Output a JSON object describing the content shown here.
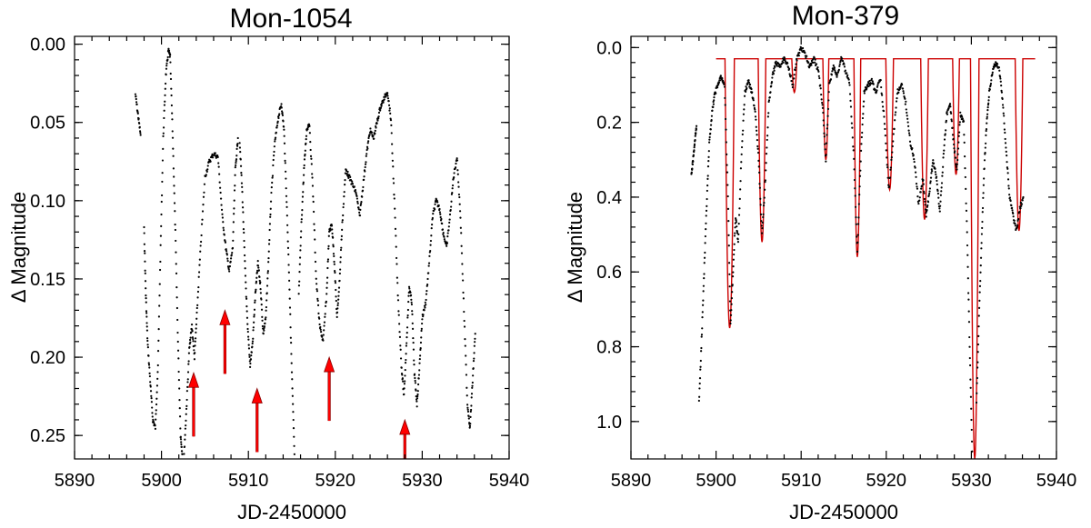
{
  "chart_data": [
    {
      "type": "scatter",
      "title": "Mon-1054",
      "xlabel": "JD-2450000",
      "ylabel": "Δ Magnitude",
      "xlim": [
        5890,
        5940
      ],
      "ylim": [
        0.265,
        -0.005
      ],
      "y_inverted": true,
      "x_ticks": [
        5890,
        5900,
        5910,
        5920,
        5930,
        5940
      ],
      "y_ticks": [
        0.0,
        0.05,
        0.1,
        0.15,
        0.2,
        0.25
      ],
      "y_tick_labels": [
        "0.00",
        "0.05",
        "0.10",
        "0.15",
        "0.20",
        "0.25"
      ],
      "marker_color": "#000000",
      "arrow_color": "#ff0000",
      "arrows": [
        {
          "x": 5903.7,
          "tip": 0.21
        },
        {
          "x": 5907.3,
          "tip": 0.17
        },
        {
          "x": 5911.0,
          "tip": 0.22
        },
        {
          "x": 5919.3,
          "tip": 0.2
        },
        {
          "x": 5928.0,
          "tip": 0.24
        }
      ],
      "series": [
        {
          "name": "photometry",
          "segments": [
            [
              [
                5897.0,
                0.032
              ],
              [
                5897.3,
                0.045
              ],
              [
                5897.6,
                0.058
              ]
            ],
            [
              [
                5898.0,
                0.118
              ],
              [
                5898.2,
                0.16
              ],
              [
                5898.4,
                0.19
              ],
              [
                5898.7,
                0.215
              ],
              [
                5899.0,
                0.24
              ],
              [
                5899.3,
                0.245
              ],
              [
                5899.6,
                0.205
              ],
              [
                5899.9,
                0.13
              ],
              [
                5900.2,
                0.06
              ],
              [
                5900.5,
                0.02
              ],
              [
                5900.8,
                0.004
              ],
              [
                5901.0,
                0.008
              ],
              [
                5901.3,
                0.06
              ],
              [
                5901.6,
                0.12
              ],
              [
                5901.9,
                0.19
              ],
              [
                5902.2,
                0.25
              ],
              [
                5902.4,
                0.262
              ]
            ],
            [
              [
                5902.6,
                0.262
              ],
              [
                5902.9,
                0.23
              ],
              [
                5903.2,
                0.195
              ],
              [
                5903.5,
                0.18
              ],
              [
                5903.8,
                0.2
              ],
              [
                5904.1,
                0.17
              ],
              [
                5904.5,
                0.13
              ],
              [
                5905.0,
                0.085
              ],
              [
                5905.5,
                0.075
              ],
              [
                5906.0,
                0.07
              ],
              [
                5906.5,
                0.072
              ],
              [
                5907.0,
                0.11
              ],
              [
                5907.4,
                0.13
              ],
              [
                5907.8,
                0.145
              ],
              [
                5908.2,
                0.13
              ],
              [
                5908.5,
                0.08
              ],
              [
                5908.8,
                0.06
              ]
            ],
            [
              [
                5909.0,
                0.062
              ],
              [
                5909.3,
                0.095
              ],
              [
                5909.6,
                0.14
              ],
              [
                5909.9,
                0.18
              ],
              [
                5910.2,
                0.205
              ],
              [
                5910.5,
                0.19
              ],
              [
                5910.8,
                0.16
              ],
              [
                5911.1,
                0.14
              ],
              [
                5911.4,
                0.155
              ],
              [
                5911.7,
                0.185
              ],
              [
                5912.0,
                0.175
              ],
              [
                5912.3,
                0.14
              ],
              [
                5912.6,
                0.1
              ],
              [
                5913.0,
                0.065
              ],
              [
                5913.4,
                0.048
              ],
              [
                5913.8,
                0.038
              ],
              [
                5914.1,
                0.055
              ],
              [
                5914.4,
                0.1
              ],
              [
                5914.7,
                0.15
              ],
              [
                5915.0,
                0.21
              ],
              [
                5915.3,
                0.262
              ]
            ],
            [
              [
                5915.8,
                0.16
              ],
              [
                5916.1,
                0.115
              ],
              [
                5916.4,
                0.08
              ],
              [
                5916.7,
                0.055
              ],
              [
                5917.0,
                0.05
              ],
              [
                5917.4,
                0.09
              ],
              [
                5917.8,
                0.15
              ],
              [
                5918.2,
                0.18
              ],
              [
                5918.6,
                0.19
              ],
              [
                5919.0,
                0.16
              ],
              [
                5919.3,
                0.12
              ],
              [
                5919.6,
                0.115
              ],
              [
                5919.9,
                0.14
              ],
              [
                5920.2,
                0.175
              ],
              [
                5920.5,
                0.15
              ],
              [
                5920.8,
                0.115
              ],
              [
                5921.2,
                0.08
              ],
              [
                5921.6,
                0.085
              ],
              [
                5922.0,
                0.09
              ],
              [
                5922.4,
                0.095
              ],
              [
                5922.8,
                0.11
              ],
              [
                5923.2,
                0.09
              ],
              [
                5923.6,
                0.07
              ],
              [
                5924.0,
                0.055
              ],
              [
                5924.4,
                0.06
              ],
              [
                5924.8,
                0.05
              ],
              [
                5925.2,
                0.04
              ],
              [
                5925.6,
                0.035
              ],
              [
                5926.0,
                0.03
              ],
              [
                5926.4,
                0.048
              ],
              [
                5926.8,
                0.1
              ],
              [
                5927.2,
                0.16
              ],
              [
                5927.6,
                0.205
              ],
              [
                5927.9,
                0.225
              ],
              [
                5928.2,
                0.19
              ],
              [
                5928.5,
                0.155
              ],
              [
                5928.8,
                0.165
              ],
              [
                5929.1,
                0.21
              ],
              [
                5929.4,
                0.23
              ],
              [
                5929.7,
                0.205
              ],
              [
                5930.0,
                0.175
              ],
              [
                5930.4,
                0.165
              ],
              [
                5930.8,
                0.14
              ],
              [
                5931.2,
                0.11
              ],
              [
                5931.6,
                0.1
              ],
              [
                5932.0,
                0.105
              ],
              [
                5932.4,
                0.12
              ],
              [
                5932.8,
                0.13
              ],
              [
                5933.2,
                0.11
              ],
              [
                5933.6,
                0.085
              ],
              [
                5934.0,
                0.072
              ],
              [
                5934.4,
                0.11
              ],
              [
                5934.8,
                0.17
              ],
              [
                5935.2,
                0.23
              ],
              [
                5935.5,
                0.245
              ],
              [
                5935.8,
                0.215
              ],
              [
                5936.1,
                0.185
              ]
            ]
          ]
        }
      ]
    },
    {
      "type": "scatter",
      "title": "Mon-379",
      "xlabel": "JD-2450000",
      "ylabel": "Δ Magnitude",
      "xlim": [
        5890,
        5940
      ],
      "ylim": [
        1.1,
        -0.03
      ],
      "y_inverted": true,
      "x_ticks": [
        5890,
        5900,
        5910,
        5920,
        5930,
        5940
      ],
      "y_ticks": [
        0.0,
        0.2,
        0.4,
        0.6,
        0.8,
        1.0
      ],
      "y_tick_labels": [
        "0.0",
        "0.2",
        "0.4",
        "0.6",
        "0.8",
        "1.0"
      ],
      "marker_color": "#000000",
      "model_color": "#cc0000",
      "model": {
        "baseline": 0.03,
        "xrange": [
          5900.0,
          5937.5
        ],
        "dips": [
          {
            "center": 5901.6,
            "depth": 0.75,
            "width": 1.1
          },
          {
            "center": 5905.4,
            "depth": 0.52,
            "width": 0.9
          },
          {
            "center": 5909.2,
            "depth": 0.12,
            "width": 0.6
          },
          {
            "center": 5912.9,
            "depth": 0.3,
            "width": 0.7
          },
          {
            "center": 5916.6,
            "depth": 0.56,
            "width": 0.8
          },
          {
            "center": 5920.4,
            "depth": 0.38,
            "width": 0.9
          },
          {
            "center": 5924.5,
            "depth": 0.46,
            "width": 0.9
          },
          {
            "center": 5928.2,
            "depth": 0.34,
            "width": 0.8
          },
          {
            "center": 5930.4,
            "depth": 1.1,
            "width": 1.0
          },
          {
            "center": 5935.6,
            "depth": 0.49,
            "width": 0.9
          }
        ]
      },
      "series": [
        {
          "name": "photometry",
          "segments": [
            [
              [
                5897.1,
                0.34
              ],
              [
                5897.3,
                0.3
              ],
              [
                5897.5,
                0.25
              ],
              [
                5897.7,
                0.21
              ]
            ],
            [
              [
                5898.0,
                0.95
              ],
              [
                5898.3,
                0.78
              ],
              [
                5898.6,
                0.6
              ],
              [
                5898.9,
                0.42
              ],
              [
                5899.2,
                0.26
              ],
              [
                5899.5,
                0.18
              ],
              [
                5899.8,
                0.13
              ],
              [
                5900.2,
                0.1
              ],
              [
                5900.6,
                0.08
              ],
              [
                5901.0,
                0.1
              ],
              [
                5901.4,
                0.4
              ],
              [
                5901.7,
                0.74
              ],
              [
                5902.0,
                0.6
              ],
              [
                5902.3,
                0.45
              ],
              [
                5902.6,
                0.52
              ],
              [
                5903.0,
                0.28
              ],
              [
                5903.4,
                0.12
              ],
              [
                5903.8,
                0.09
              ],
              [
                5904.2,
                0.12
              ],
              [
                5904.6,
                0.17
              ],
              [
                5905.0,
                0.3
              ],
              [
                5905.4,
                0.5
              ],
              [
                5905.8,
                0.35
              ],
              [
                5906.2,
                0.15
              ],
              [
                5906.6,
                0.08
              ],
              [
                5907.0,
                0.04
              ],
              [
                5907.5,
                0.05
              ],
              [
                5908.0,
                0.03
              ],
              [
                5908.5,
                0.05
              ],
              [
                5909.0,
                0.1
              ],
              [
                5909.5,
                0.03
              ],
              [
                5910.0,
                0.0
              ],
              [
                5910.5,
                0.02
              ],
              [
                5911.0,
                0.05
              ],
              [
                5911.5,
                0.03
              ],
              [
                5912.0,
                0.06
              ],
              [
                5912.5,
                0.15
              ],
              [
                5912.9,
                0.3
              ],
              [
                5913.3,
                0.1
              ],
              [
                5913.8,
                0.05
              ],
              [
                5914.2,
                0.08
              ],
              [
                5914.7,
                0.03
              ],
              [
                5915.2,
                0.06
              ],
              [
                5915.7,
                0.1
              ],
              [
                5916.2,
                0.3
              ],
              [
                5916.6,
                0.55
              ],
              [
                5917.0,
                0.3
              ],
              [
                5917.4,
                0.12
              ],
              [
                5917.8,
                0.1
              ],
              [
                5918.3,
                0.09
              ],
              [
                5918.8,
                0.12
              ],
              [
                5919.3,
                0.08
              ],
              [
                5919.8,
                0.2
              ],
              [
                5920.3,
                0.38
              ],
              [
                5920.8,
                0.25
              ],
              [
                5921.3,
                0.12
              ],
              [
                5921.8,
                0.1
              ],
              [
                5922.3,
                0.15
              ],
              [
                5922.8,
                0.25
              ],
              [
                5923.3,
                0.3
              ],
              [
                5923.8,
                0.42
              ],
              [
                5924.3,
                0.35
              ],
              [
                5924.7,
                0.45
              ],
              [
                5925.1,
                0.38
              ],
              [
                5925.5,
                0.3
              ],
              [
                5925.9,
                0.35
              ],
              [
                5926.3,
                0.44
              ],
              [
                5926.7,
                0.3
              ],
              [
                5927.1,
                0.18
              ],
              [
                5927.5,
                0.15
              ],
              [
                5927.9,
                0.25
              ],
              [
                5928.3,
                0.33
              ],
              [
                5928.7,
                0.18
              ],
              [
                5929.1,
                0.2
              ],
              [
                5929.5,
                0.5
              ],
              [
                5929.8,
                0.8
              ],
              [
                5930.1,
                1.08
              ]
            ],
            [
              [
                5930.6,
                0.95
              ],
              [
                5930.9,
                0.72
              ],
              [
                5931.2,
                0.52
              ],
              [
                5931.5,
                0.33
              ],
              [
                5931.8,
                0.2
              ],
              [
                5932.1,
                0.12
              ],
              [
                5932.5,
                0.06
              ],
              [
                5932.9,
                0.04
              ],
              [
                5933.3,
                0.06
              ],
              [
                5933.7,
                0.15
              ],
              [
                5934.1,
                0.28
              ],
              [
                5934.5,
                0.4
              ],
              [
                5934.9,
                0.45
              ],
              [
                5935.3,
                0.49
              ],
              [
                5935.7,
                0.43
              ],
              [
                5936.1,
                0.4
              ]
            ]
          ]
        }
      ]
    }
  ]
}
